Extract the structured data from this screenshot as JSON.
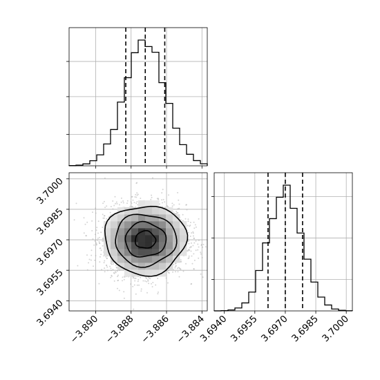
{
  "chart_data": {
    "type": "corner",
    "parameters": [
      {
        "name": "",
        "mean": -3.8872,
        "std": 0.00115,
        "quantiles": [
          -3.8883,
          -3.8872,
          -3.8861
        ],
        "range": [
          -3.8915,
          -3.8837
        ],
        "ticks": [
          -3.89,
          -3.888,
          -3.886,
          -3.884
        ],
        "tick_labels": [
          "−3.890",
          "−3.888",
          "−3.886",
          "−3.884"
        ]
      },
      {
        "name": "",
        "mean": 3.697,
        "std": 0.00085,
        "quantiles": [
          3.69615,
          3.697,
          3.69785
        ],
        "range": [
          3.6935,
          3.7003
        ],
        "ticks": [
          3.694,
          3.6955,
          3.697,
          3.6985,
          3.7
        ],
        "tick_labels": [
          "3.6940",
          "3.6955",
          "3.6970",
          "3.6985",
          "3.7000"
        ]
      }
    ],
    "bins": 20,
    "histogram_style": "step",
    "quantile_lines": "dashed",
    "scatter": {
      "points": 3000,
      "color": "#b0b0b0"
    },
    "density_levels": 4,
    "grid": true,
    "colors": {
      "line": "#000000",
      "grid": "#b0b0b0",
      "points": "#b0b0b0"
    }
  }
}
